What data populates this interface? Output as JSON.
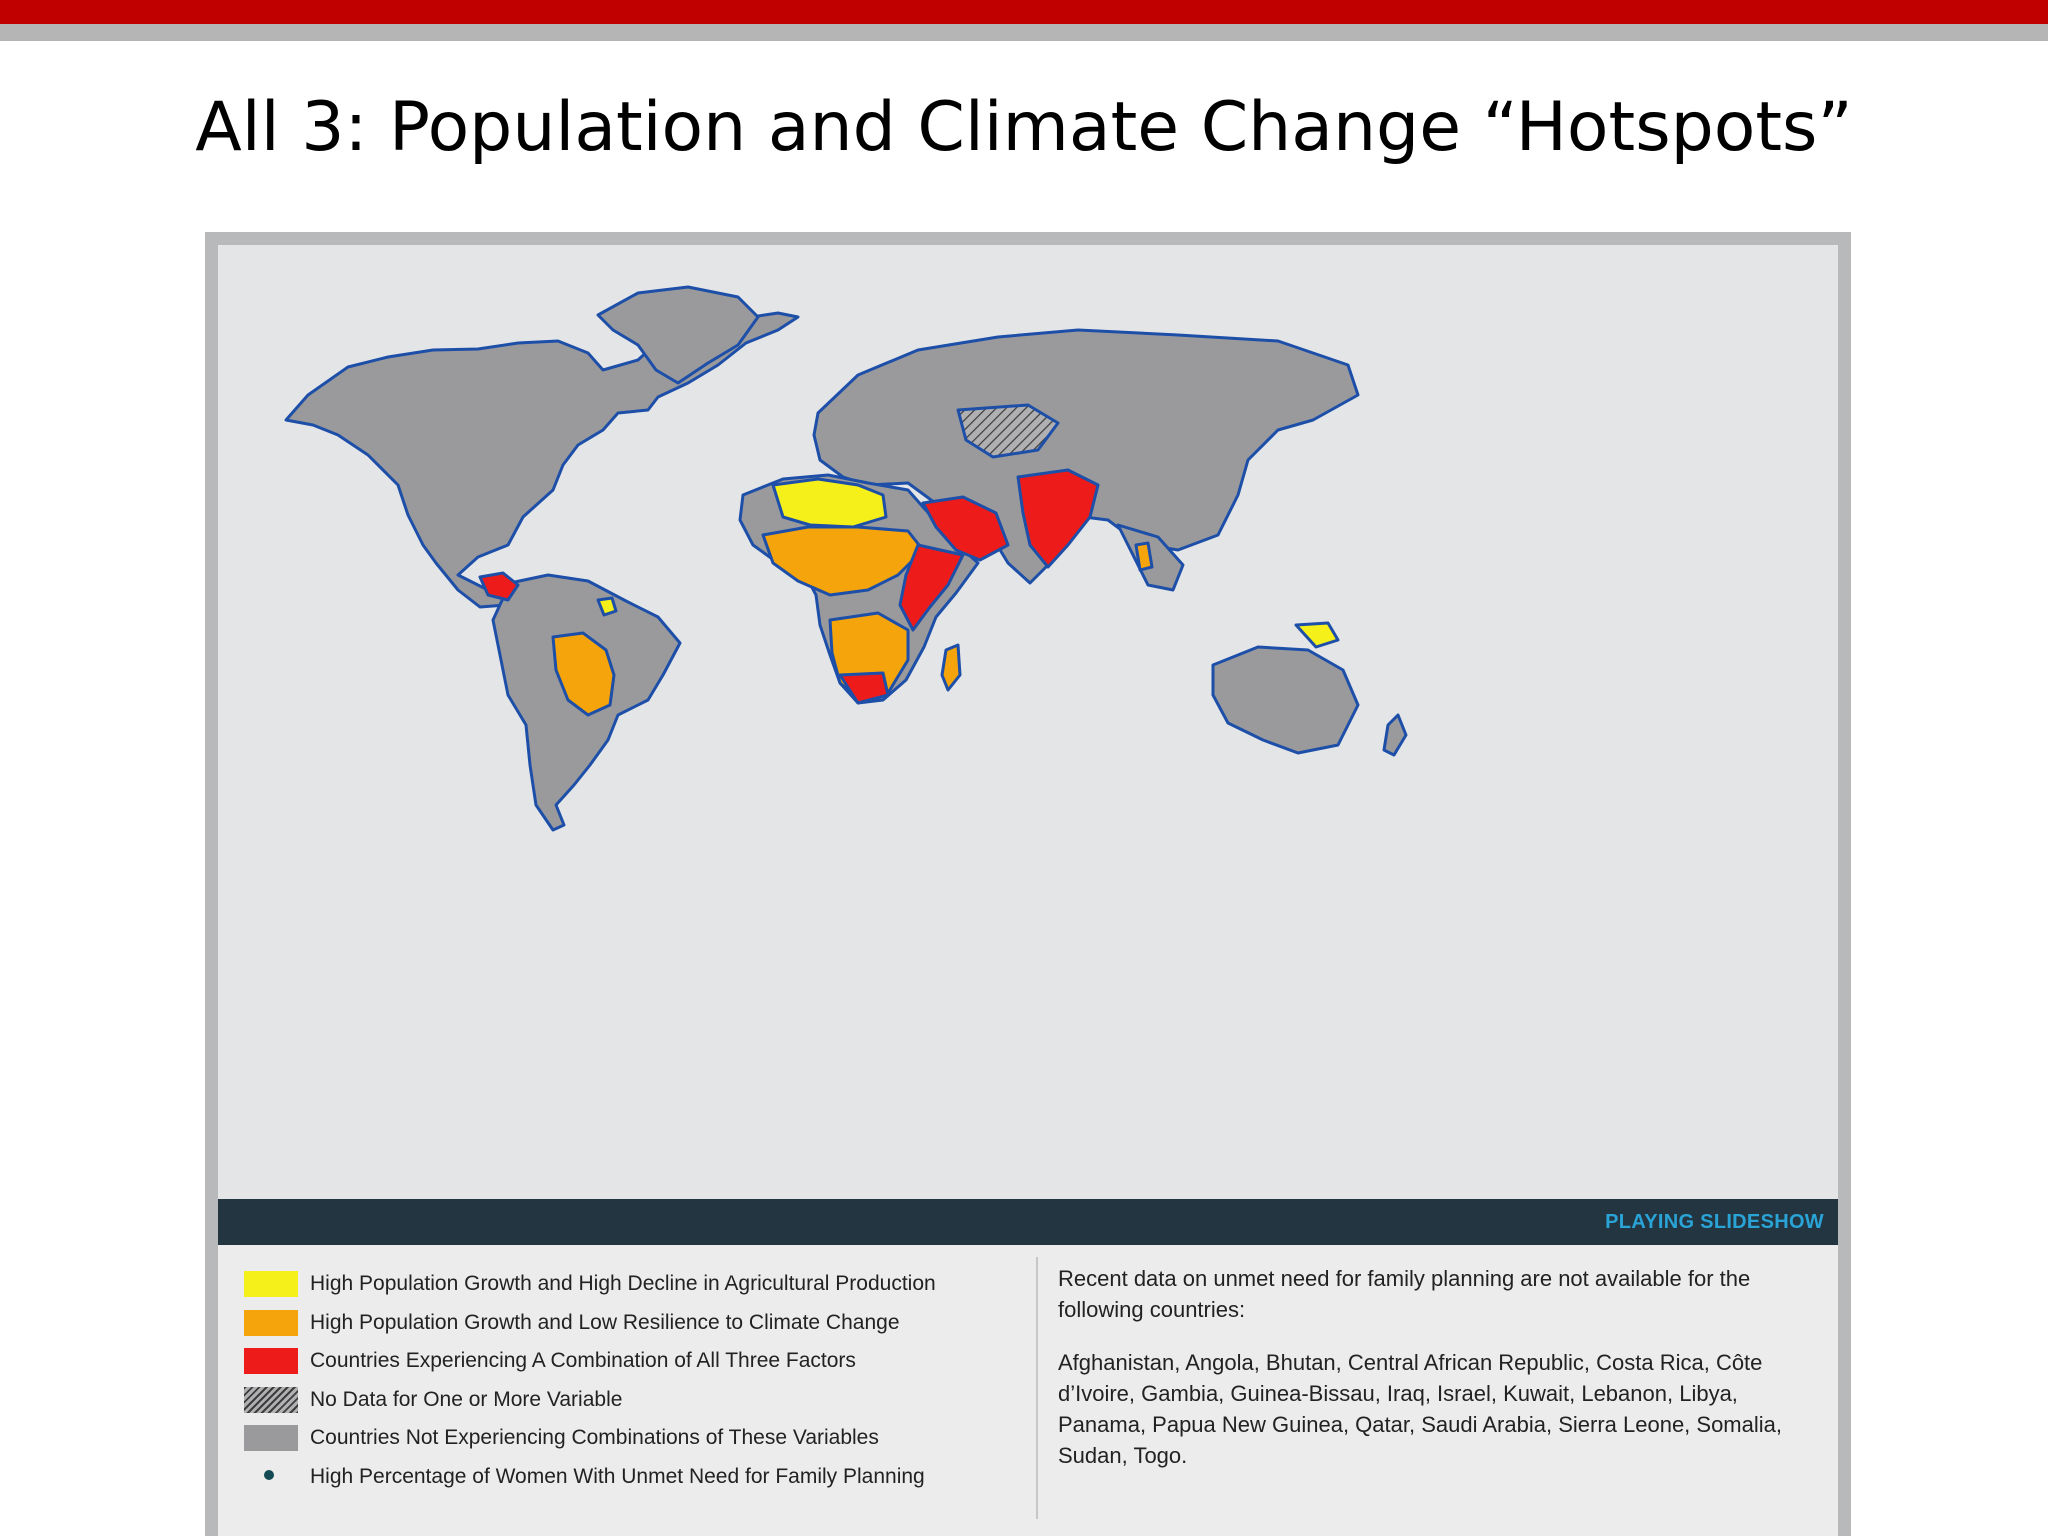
{
  "slide": {
    "title": "All 3: Population and Climate Change “Hotspots”"
  },
  "colors": {
    "accent_red_bar": "#c00000",
    "accent_gray_bar": "#b5b5b5",
    "ocean": "#e4e5e7",
    "land_default": "#9a9a9c",
    "coast_line": "#1d4fa8",
    "yellow": "#f5f01a",
    "orange": "#f5a40c",
    "red": "#ee1b1b",
    "slideshow_bar": "#223540",
    "slideshow_text": "#2aa3d6"
  },
  "map": {
    "slideshow_label": "PLAYING SLIDESHOW",
    "highlighted_regions": [
      {
        "region": "sahel-north-africa",
        "category": "yellow"
      },
      {
        "region": "west-central-africa",
        "category": "orange"
      },
      {
        "region": "horn-east-africa",
        "category": "red"
      },
      {
        "region": "southern-africa",
        "category": "orange"
      },
      {
        "region": "arabian-peninsula",
        "category": "red"
      },
      {
        "region": "south-asia",
        "category": "red"
      },
      {
        "region": "bolivia-paraguay",
        "category": "orange"
      },
      {
        "region": "papua-new-guinea",
        "category": "yellow"
      }
    ]
  },
  "legend": {
    "items": [
      {
        "swatch": "yellow",
        "label": "High Population Growth and High Decline in Agricultural Production"
      },
      {
        "swatch": "orange",
        "label": "High Population Growth and Low Resilience to Climate Change"
      },
      {
        "swatch": "red",
        "label": "Countries Experiencing A Combination of All Three Factors"
      },
      {
        "swatch": "hatched",
        "label": "No Data for One or More Variable"
      },
      {
        "swatch": "gray",
        "label": "Countries Not Experiencing Combinations of These Variables"
      },
      {
        "swatch": "dot",
        "label": "High Percentage of Women With Unmet Need for Family Planning"
      }
    ]
  },
  "note": {
    "intro": "Recent data on unmet need for family planning are not available for the following countries:",
    "countries": "Afghanistan, Angola, Bhutan, Central African Republic, Costa Rica, Côte d’Ivoire, Gambia, Guinea-Bissau, Iraq, Israel, Kuwait, Lebanon, Libya, Panama, Papua New Guinea, Qatar, Saudi Arabia, Sierra Leone, Somalia, Sudan, Togo."
  }
}
